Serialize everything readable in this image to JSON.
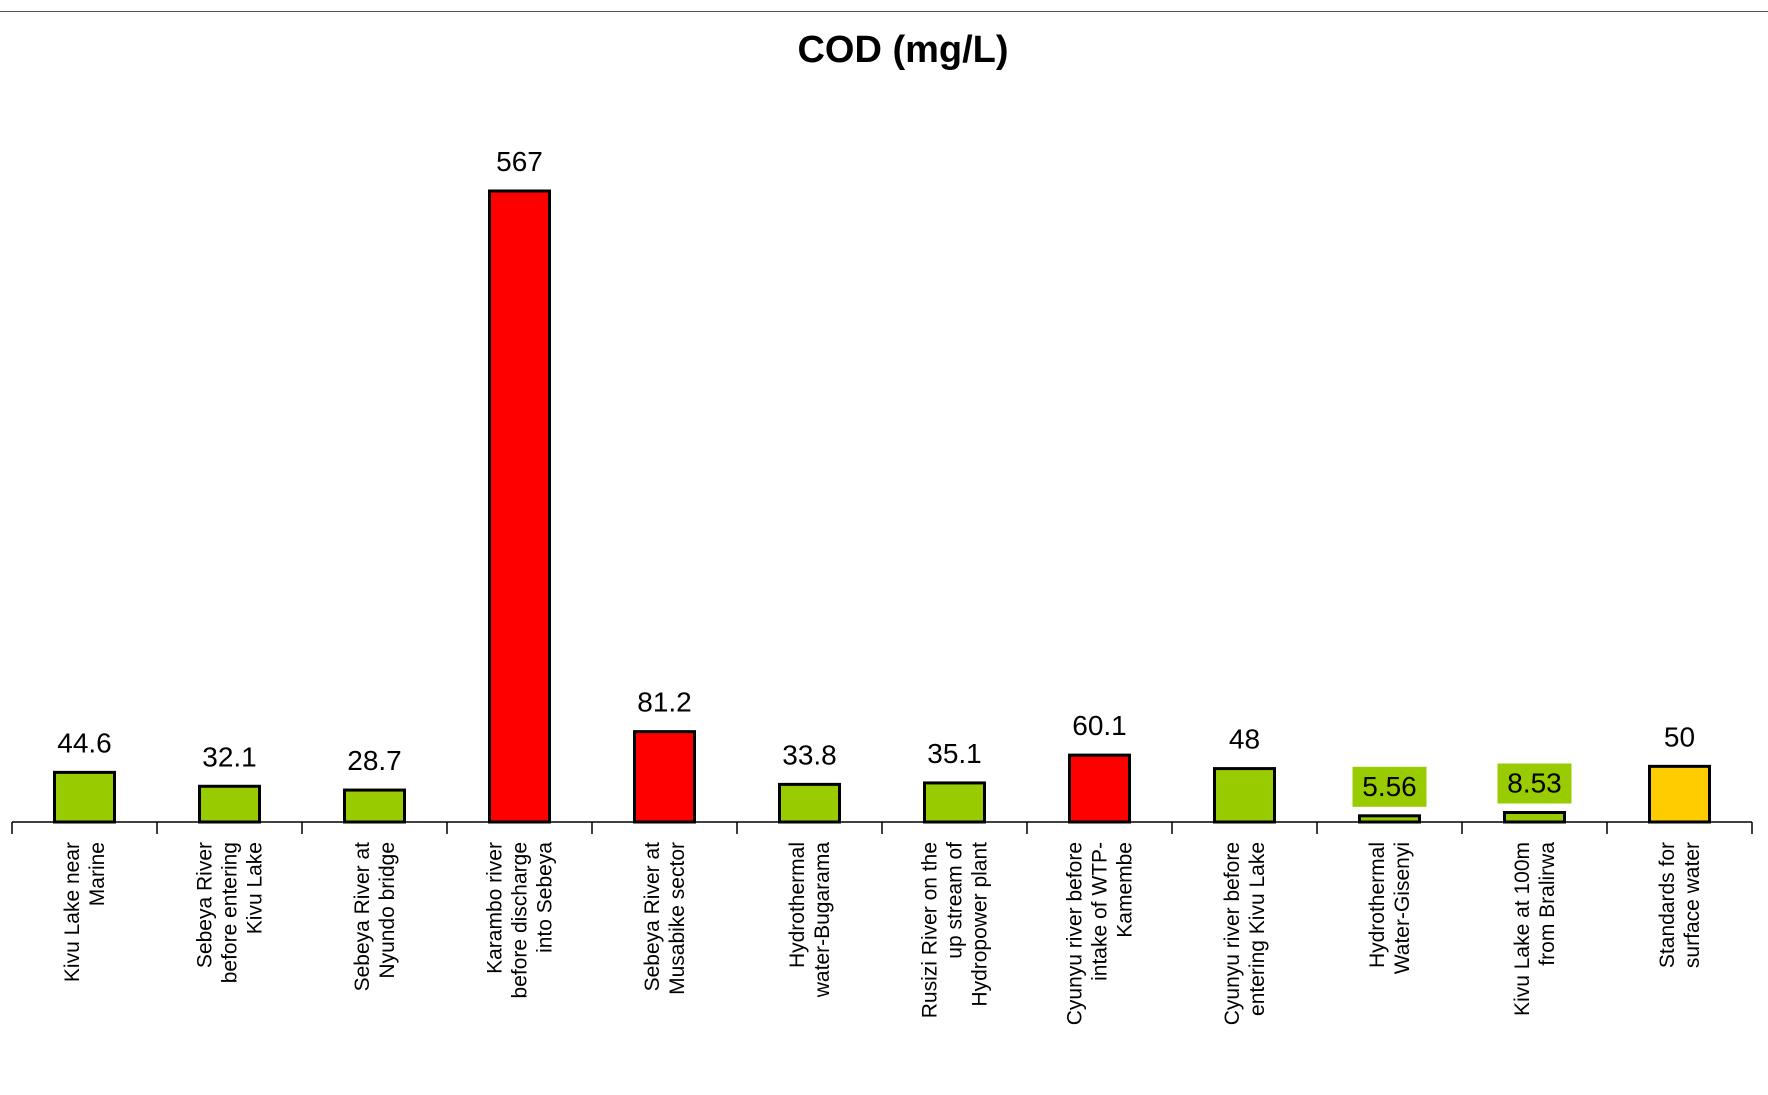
{
  "chart_data": {
    "type": "bar",
    "title": "COD (mg/L)",
    "xlabel": "",
    "ylabel": "",
    "grid": false,
    "legend": "none",
    "categories": [
      "Kivu Lake near Marine",
      "Sebeya River before entering Kivu Lake",
      "Sebeya River at Nyundo bridge",
      "Karambo river before discharge into Sebeya",
      "Sebeya River at Musabike sector",
      "Hydrothermal water-Bugarama",
      "Rusizi River on the up stream of Hydropower plant",
      "Cyunyu river before intake of WTP-Kamembe",
      "Cyunyu river before entering Kivu Lake",
      "Hydrothermal Water-Gisenyi",
      "Kivu Lake at 100m from Bralirwa",
      "Standards for surface water"
    ],
    "category_lines": [
      [
        "Kivu Lake near",
        "Marine"
      ],
      [
        "Sebeya River",
        "before entering",
        "Kivu Lake"
      ],
      [
        "Sebeya River at",
        "Nyundo bridge"
      ],
      [
        "Karambo river",
        "before discharge",
        "into Sebeya"
      ],
      [
        "Sebeya River at",
        "Musabike sector"
      ],
      [
        "Hydrothermal",
        "water-Bugarama"
      ],
      [
        "Rusizi River on the",
        "up stream of",
        "Hydropower plant"
      ],
      [
        "Cyunyu river before",
        "intake of WTP-",
        "Kamembe"
      ],
      [
        "Cyunyu river before",
        "entering Kivu Lake"
      ],
      [
        "Hydrothermal",
        "Water-Gisenyi"
      ],
      [
        "Kivu Lake at 100m",
        "from Bralirwa"
      ],
      [
        "Standards for",
        "surface water"
      ]
    ],
    "values": [
      44.6,
      32.1,
      28.7,
      567,
      81.2,
      33.8,
      35.1,
      60.1,
      48,
      5.56,
      8.53,
      50
    ],
    "value_labels": [
      "44.6",
      "32.1",
      "28.7",
      "567",
      "81.2",
      "33.8",
      "35.1",
      "60.1",
      "48",
      "5.56",
      "8.53",
      "50"
    ],
    "bar_colors": [
      "#99cc00",
      "#99cc00",
      "#99cc00",
      "#ff0000",
      "#ff0000",
      "#99cc00",
      "#99cc00",
      "#ff0000",
      "#99cc00",
      "#99cc00",
      "#99cc00",
      "#ffcc00"
    ],
    "label_highlight": [
      false,
      false,
      false,
      false,
      false,
      false,
      false,
      false,
      false,
      true,
      true,
      false
    ],
    "label_highlight_color": "#99cc00",
    "ylim": [
      0,
      567
    ]
  }
}
